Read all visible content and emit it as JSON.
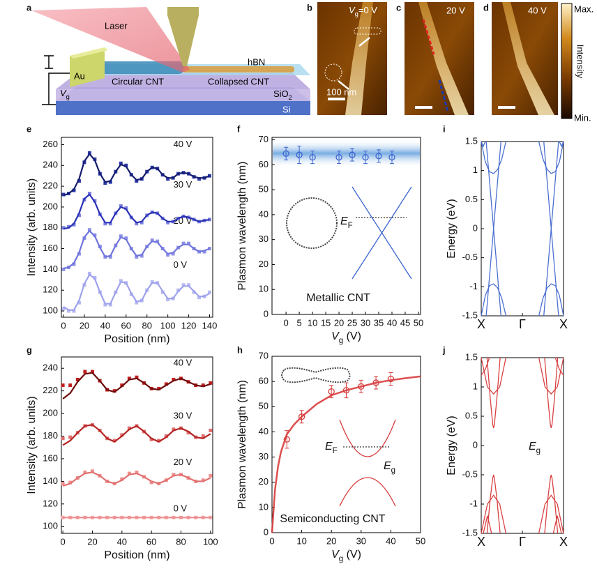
{
  "panel_labels": [
    "a",
    "b",
    "c",
    "d",
    "e",
    "f",
    "i",
    "g",
    "h",
    "j"
  ],
  "schematic": {
    "laser": "Laser",
    "au": "Au",
    "hbn": "hBN",
    "circular": "Circular CNT",
    "collapsed": "Collapsed CNT",
    "sio2": {
      "text": "SiO",
      "sub": "2"
    },
    "si": "Si",
    "vg": {
      "symbol": "V",
      "sub": "g"
    }
  },
  "images": {
    "b_gate": {
      "symbol": "V",
      "sub": "g",
      "text": "=0 V"
    },
    "scale": "100 nm",
    "c_gate": "20 V",
    "d_gate": "40 V",
    "colorbar": {
      "max": "Max.",
      "label": "Intensity",
      "min": "Min."
    }
  },
  "chart_data": [
    {
      "type": "line",
      "xlabel": "Position (nm)",
      "ylabel": "Intensity (arb. units)",
      "x": [
        0,
        5,
        10,
        15,
        20,
        25,
        30,
        35,
        40,
        45,
        50,
        55,
        60,
        65,
        70,
        75,
        80,
        85,
        90,
        95,
        100,
        105,
        110,
        115,
        120,
        125,
        130,
        135,
        140
      ],
      "xlim": [
        -2,
        143
      ],
      "xticks": [
        0,
        20,
        40,
        60,
        80,
        100,
        120,
        140
      ],
      "ylim": [
        94,
        267
      ],
      "yticks": [
        100,
        120,
        140,
        160,
        180,
        200,
        220,
        240,
        260
      ],
      "series": [
        {
          "name": "0 V",
          "color": "#b7b9f2",
          "fit_color": "#9ea2ec",
          "values": [
            102,
            100,
            100,
            108,
            125,
            136,
            132,
            118,
            106,
            106,
            118,
            129,
            127,
            116,
            108,
            110,
            120,
            128,
            127,
            118,
            111,
            112,
            120,
            125,
            125,
            118,
            113,
            114,
            118
          ],
          "fit": [
            104,
            101,
            101,
            110,
            126,
            135,
            131,
            118,
            107,
            107,
            118,
            128,
            127,
            117,
            109,
            110,
            120,
            127,
            127,
            119,
            112,
            112,
            119,
            124,
            124,
            119,
            114,
            114,
            117
          ]
        },
        {
          "name": "20 V",
          "color": "#8f93e6",
          "fit_color": "#6f74dc",
          "values": [
            140,
            142,
            145,
            155,
            170,
            178,
            173,
            162,
            152,
            152,
            163,
            172,
            170,
            160,
            152,
            153,
            162,
            168,
            167,
            160,
            154,
            155,
            161,
            165,
            165,
            160,
            157,
            157,
            160
          ],
          "fit": [
            141,
            142,
            146,
            156,
            171,
            177,
            172,
            161,
            152,
            153,
            163,
            171,
            169,
            160,
            153,
            154,
            162,
            167,
            166,
            160,
            155,
            156,
            161,
            164,
            164,
            160,
            157,
            158,
            160
          ]
        },
        {
          "name": "30 V",
          "color": "#7c81e0",
          "fit_color": "#2a31b3",
          "values": [
            180,
            181,
            183,
            192,
            207,
            213,
            206,
            193,
            184,
            184,
            194,
            201,
            199,
            190,
            184,
            185,
            192,
            195,
            194,
            189,
            185,
            186,
            189,
            191,
            190,
            188,
            186,
            187,
            188
          ],
          "fit": [
            179,
            180,
            184,
            194,
            208,
            212,
            205,
            193,
            185,
            185,
            194,
            200,
            198,
            190,
            185,
            186,
            192,
            195,
            194,
            189,
            186,
            186,
            189,
            191,
            190,
            188,
            186,
            187,
            188
          ]
        },
        {
          "name": "40 V",
          "color": "#2d3aa8",
          "fit_color": "#141c6e",
          "values": [
            212,
            213,
            216,
            225,
            243,
            252,
            246,
            232,
            223,
            224,
            234,
            242,
            240,
            231,
            225,
            227,
            234,
            238,
            237,
            231,
            227,
            228,
            232,
            233,
            232,
            229,
            227,
            228,
            230
          ],
          "fit": [
            211,
            213,
            217,
            227,
            244,
            251,
            245,
            232,
            224,
            225,
            234,
            241,
            239,
            231,
            226,
            227,
            234,
            238,
            237,
            231,
            228,
            228,
            232,
            233,
            232,
            229,
            228,
            228,
            230
          ]
        }
      ]
    },
    {
      "type": "scatter",
      "xlabel": {
        "symbol": "V",
        "sub": "g",
        "unit": " (V)"
      },
      "ylabel": "Plasmon wavelength (nm)",
      "xlim": [
        -5.3,
        50.8
      ],
      "xticks": [
        0,
        5,
        10,
        15,
        20,
        25,
        30,
        35,
        40,
        45,
        50
      ],
      "ylim": [
        0,
        71
      ],
      "yticks": [
        0,
        10,
        20,
        30,
        40,
        50,
        60,
        70
      ],
      "series": [
        {
          "color": "#3b63d0",
          "x": [
            0,
            5,
            10,
            20,
            25,
            30,
            35,
            40
          ],
          "values": [
            64.5,
            64,
            63,
            63,
            64,
            63,
            63.5,
            63
          ],
          "errors": [
            2.5,
            3.5,
            2.5,
            2.5,
            2.5,
            2.5,
            2.5,
            2.5
          ]
        }
      ],
      "annotations": [
        "Metallic CNT",
        {
          "symbol": "E",
          "sub": "F"
        }
      ]
    },
    {
      "type": "line",
      "ylabel": "Energy (eV)",
      "xlim": [
        -1,
        1
      ],
      "xticks": [
        {
          "value": -1,
          "label": "X"
        },
        {
          "value": 0,
          "label": "Γ"
        },
        {
          "value": 1,
          "label": "X"
        }
      ],
      "ylim": [
        -1.5,
        1.5
      ],
      "yticks": [
        -1.5,
        -1,
        -0.5,
        0,
        0.5,
        1,
        1.5
      ],
      "series": [
        {
          "color": "#4a6fd0",
          "x": [
            -0.88,
            -0.52,
            null,
            0.52,
            0.88
          ],
          "values": [
            1.5,
            -1.5,
            null,
            -1.5,
            1.5
          ]
        },
        {
          "color": "#4a6fd0",
          "x": [
            -0.88,
            -0.52,
            null,
            0.52,
            0.88
          ],
          "values": [
            -1.5,
            1.5,
            null,
            1.5,
            -1.5
          ]
        },
        {
          "color": "#4a6fd0",
          "x": [
            -1,
            -0.9,
            -0.8,
            -0.7,
            -0.6,
            -0.5,
            -0.4,
            null,
            0.4,
            0.5,
            0.6,
            0.7,
            0.8,
            0.9,
            1
          ],
          "values": [
            1.5,
            1.15,
            0.98,
            0.95,
            1.02,
            1.2,
            1.5,
            null,
            1.5,
            1.2,
            1.02,
            0.95,
            0.98,
            1.15,
            1.5
          ]
        },
        {
          "color": "#4a6fd0",
          "x": [
            -1,
            -0.9,
            -0.8,
            -0.7,
            -0.6,
            -0.5,
            -0.4,
            null,
            0.4,
            0.5,
            0.6,
            0.7,
            0.8,
            0.9,
            1
          ],
          "values": [
            -1.5,
            -1.15,
            -0.98,
            -0.95,
            -1.02,
            -1.2,
            -1.5,
            null,
            -1.5,
            -1.2,
            -1.02,
            -0.95,
            -0.98,
            -1.15,
            -1.5
          ]
        },
        {
          "color": "#4a6fd0",
          "x": [
            -1,
            -0.95,
            -0.9,
            null,
            0.9,
            0.95,
            1
          ],
          "values": [
            1.5,
            1.42,
            1.5,
            null,
            1.5,
            1.42,
            1.5
          ]
        }
      ]
    },
    {
      "type": "line",
      "xlabel": "Position (nm)",
      "ylabel": "Intensity (arb. units)",
      "x": [
        0,
        5,
        10,
        15,
        20,
        25,
        30,
        35,
        40,
        45,
        50,
        55,
        60,
        65,
        70,
        75,
        80,
        85,
        90,
        95,
        100
      ],
      "xlim": [
        -1,
        101.5
      ],
      "xticks": [
        0,
        20,
        40,
        60,
        80,
        100
      ],
      "ylim": [
        94,
        250
      ],
      "yticks": [
        100,
        120,
        140,
        160,
        180,
        200,
        220,
        240
      ],
      "series": [
        {
          "name": "0 V",
          "color": "#f2a3a3",
          "fit_color": "#ec8c8c",
          "values": [
            108,
            108,
            108,
            108,
            108,
            108,
            108,
            108,
            108,
            108,
            108,
            108,
            108,
            108,
            108,
            108,
            108,
            108,
            108,
            108,
            108
          ],
          "fit": [
            108,
            108,
            108,
            108,
            108,
            108,
            108,
            108,
            108,
            108,
            108,
            108,
            108,
            108,
            108,
            108,
            108,
            108,
            108,
            108,
            108
          ]
        },
        {
          "name": "20 V",
          "color": "#ee9090",
          "fit_color": "#e27070",
          "values": [
            138,
            139,
            143,
            148,
            149,
            145,
            140,
            138,
            142,
            147,
            148,
            144,
            139,
            138,
            141,
            146,
            146,
            143,
            140,
            141,
            145
          ],
          "fit": [
            136,
            138,
            143,
            147,
            148,
            145,
            140,
            138,
            141,
            146,
            147,
            144,
            140,
            138,
            141,
            145,
            146,
            143,
            140,
            140,
            143
          ]
        },
        {
          "name": "30 V",
          "color": "#e07070",
          "fit_color": "#b52323",
          "values": [
            178,
            179,
            183,
            189,
            190,
            185,
            178,
            176,
            181,
            187,
            189,
            184,
            177,
            176,
            180,
            186,
            187,
            183,
            179,
            180,
            185
          ],
          "fit": [
            172,
            176,
            183,
            189,
            190,
            185,
            178,
            175,
            180,
            186,
            189,
            184,
            178,
            175,
            179,
            185,
            187,
            184,
            179,
            178,
            182
          ]
        },
        {
          "name": "40 V",
          "color": "#c02020",
          "fit_color": "#6e0b0b",
          "values": [
            225,
            225,
            230,
            237,
            237,
            229,
            221,
            220,
            225,
            231,
            232,
            227,
            222,
            222,
            226,
            230,
            231,
            228,
            225,
            225,
            227
          ],
          "fit": [
            213,
            218,
            228,
            235,
            236,
            229,
            221,
            219,
            224,
            230,
            231,
            227,
            222,
            221,
            225,
            229,
            231,
            228,
            225,
            224,
            226
          ]
        }
      ]
    },
    {
      "type": "scatter",
      "xlabel": {
        "symbol": "V",
        "sub": "g",
        "unit": " (V)"
      },
      "ylabel": "Plasmon wavelength (nm)",
      "xlim": [
        0,
        50
      ],
      "xticks": [
        0,
        10,
        20,
        30,
        40,
        50
      ],
      "ylim": [
        0,
        70
      ],
      "yticks": [
        0,
        10,
        20,
        30,
        40,
        50,
        60,
        70
      ],
      "series": [
        {
          "color": "#d83c3c",
          "x": [
            5,
            10,
            20,
            25,
            30,
            35,
            40
          ],
          "values": [
            37,
            46,
            56,
            56.5,
            58,
            59.5,
            61
          ],
          "errors": [
            3.5,
            2.5,
            2.5,
            3,
            2.5,
            2.5,
            2.5
          ],
          "fit_x": [
            0,
            1,
            2,
            3,
            5,
            7.5,
            10,
            15,
            20,
            25,
            30,
            35,
            40,
            45,
            50
          ],
          "fit": [
            0,
            17,
            26,
            32,
            39,
            43,
            46,
            51,
            54.5,
            56.5,
            58,
            59.5,
            60.5,
            61.3,
            62
          ]
        }
      ],
      "annotations": [
        "Semiconducting CNT",
        {
          "symbol": "E",
          "sub": "F"
        },
        {
          "symbol": "E",
          "sub": "g"
        }
      ]
    },
    {
      "type": "line",
      "ylabel": "Energy (eV)",
      "xlim": [
        -1,
        1
      ],
      "xticks": [
        {
          "value": -1,
          "label": "X"
        },
        {
          "value": 0,
          "label": "Γ"
        },
        {
          "value": 1,
          "label": "X"
        }
      ],
      "ylim": [
        -1.5,
        1.5
      ],
      "yticks": [
        -1.5,
        -1,
        -0.5,
        0,
        0.5,
        1,
        1.5
      ],
      "series": [
        {
          "color": "#d84040",
          "x": [
            -0.86,
            -0.78,
            -0.72,
            -0.7,
            -0.68,
            -0.62,
            -0.54,
            null,
            0.54,
            0.62,
            0.68,
            0.7,
            0.72,
            0.78,
            0.86
          ],
          "values": [
            1.5,
            0.8,
            0.36,
            0.3,
            0.36,
            0.8,
            1.5,
            null,
            1.5,
            0.8,
            0.36,
            0.3,
            0.36,
            0.8,
            1.5
          ]
        },
        {
          "color": "#d84040",
          "x": [
            -1,
            -0.85,
            -0.7,
            -0.55,
            -0.4,
            null,
            0.4,
            0.55,
            0.7,
            0.85,
            1
          ],
          "values": [
            1.5,
            1.0,
            0.88,
            1.0,
            1.5,
            null,
            1.5,
            1.0,
            0.88,
            1.0,
            1.5
          ]
        },
        {
          "color": "#d84040",
          "x": [
            -1,
            -0.9,
            -0.8,
            null,
            0.8,
            0.9,
            1
          ],
          "values": [
            1.2,
            1.3,
            1.5,
            null,
            1.5,
            1.3,
            1.2
          ]
        },
        {
          "color": "#d84040",
          "x": [
            -0.86,
            -0.78,
            -0.72,
            -0.7,
            -0.68,
            -0.62,
            -0.54,
            null,
            0.54,
            0.62,
            0.68,
            0.7,
            0.72,
            0.78,
            0.86
          ],
          "values": [
            -1.5,
            -0.9,
            -0.56,
            -0.5,
            -0.56,
            -0.9,
            -1.5,
            null,
            -1.5,
            -0.9,
            -0.56,
            -0.5,
            -0.56,
            -0.9,
            -1.5
          ]
        },
        {
          "color": "#d84040",
          "x": [
            -1,
            -0.85,
            -0.7,
            -0.55,
            -0.4,
            null,
            0.4,
            0.55,
            0.7,
            0.85,
            1
          ],
          "values": [
            -1.5,
            -1.0,
            -0.85,
            -1.0,
            -1.5,
            null,
            -1.5,
            -1.0,
            -0.85,
            -1.0,
            -1.5
          ]
        },
        {
          "color": "#d84040",
          "x": [
            -0.95,
            -0.85,
            -0.75,
            null,
            0.75,
            0.85,
            0.95
          ],
          "values": [
            -1.5,
            -1.2,
            -1.5,
            null,
            -1.5,
            -1.2,
            -1.5
          ]
        }
      ],
      "annotations": [
        {
          "symbol": "E",
          "sub": "g"
        }
      ]
    }
  ]
}
